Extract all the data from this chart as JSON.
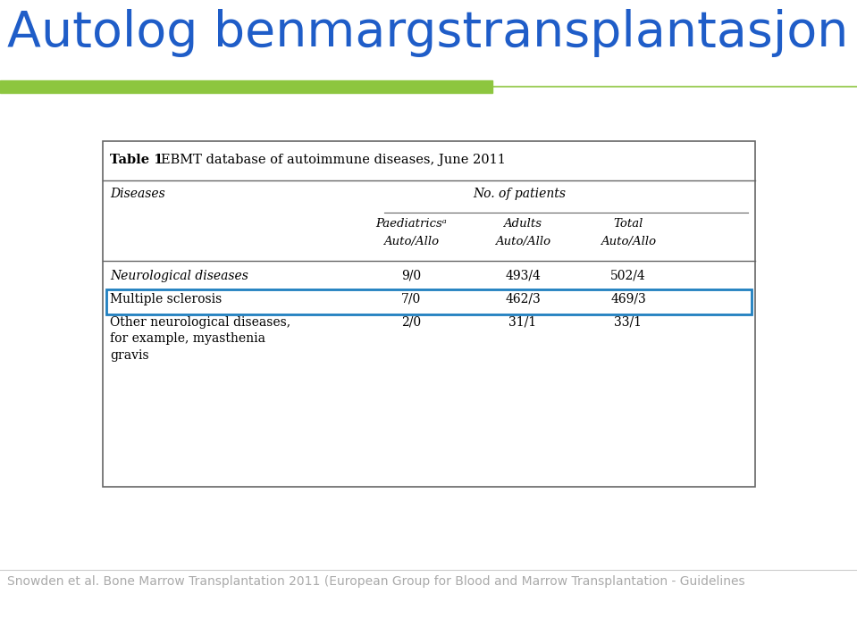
{
  "title": "Autolog benmargstransplantasjon",
  "title_color": "#1F5DC8",
  "title_fontsize": 40,
  "bar1_color": "#8DC63F",
  "bar1_xend": 0.575,
  "line_color": "#8DC63F",
  "table_title_bold": "Table 1",
  "table_title_normal": "     EBMT database of autoimmune diseases, June 2011",
  "col_header1": "Diseases",
  "col_header2": "No. of patients",
  "sub_col1": "Paediatricsᵃ",
  "sub_col1b": "Auto/Allo",
  "sub_col2": "Adults",
  "sub_col2b": "Auto/Allo",
  "sub_col3": "Total",
  "sub_col3b": "Auto/Allo",
  "rows": [
    {
      "disease": "Neurological diseases",
      "italic": true,
      "paed": "9/0",
      "adults": "493/4",
      "total": "502/4",
      "highlight": false
    },
    {
      "disease": "Multiple sclerosis",
      "italic": false,
      "paed": "7/0",
      "adults": "462/3",
      "total": "469/3",
      "highlight": true
    },
    {
      "disease": "Other neurological diseases,\nfor example, myasthenia\ngravis",
      "italic": false,
      "paed": "2/0",
      "adults": "31/1",
      "total": "33/1",
      "highlight": false
    }
  ],
  "footer": "Snowden et al. Bone Marrow Transplantation 2011 (European Group for Blood and Marrow Transplantation - Guidelines",
  "footer_color": "#AAAAAA",
  "footer_fontsize": 10,
  "bg_color": "#FFFFFF",
  "table_border_color": "#666666",
  "highlight_box_color": "#2080C0"
}
